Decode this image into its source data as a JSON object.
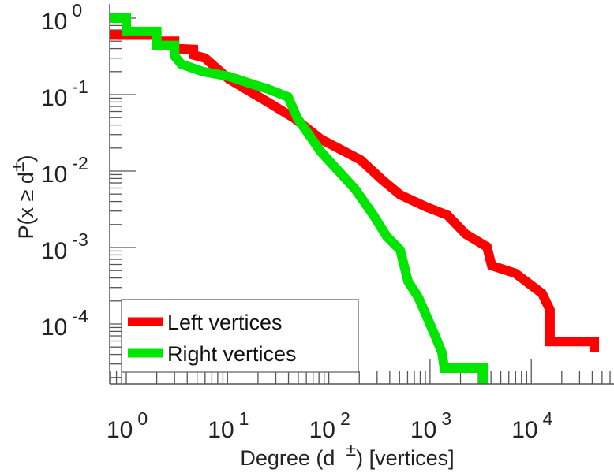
{
  "chart_data": {
    "type": "line",
    "title": "",
    "xlabel": {
      "main": "Degree (d",
      "sup": "±",
      "tail": ") [vertices]"
    },
    "ylabel": {
      "main": "P(x ≥ d",
      "sup": "±",
      "tail": ")"
    },
    "xscale": "log",
    "yscale": "log",
    "xlim": [
      0.69,
      60000
    ],
    "ylim": [
      1.65e-05,
      1.55
    ],
    "grid": false,
    "legend_position": "bottom-left",
    "x_ticks": [
      {
        "value": 1,
        "base": "10",
        "exp": "0"
      },
      {
        "value": 10,
        "base": "10",
        "exp": "1"
      },
      {
        "value": 100,
        "base": "10",
        "exp": "2"
      },
      {
        "value": 1000,
        "base": "10",
        "exp": "3"
      },
      {
        "value": 10000,
        "base": "10",
        "exp": "4"
      }
    ],
    "y_ticks": [
      {
        "value": 1,
        "base": "10",
        "exp": "0"
      },
      {
        "value": 0.1,
        "base": "10",
        "exp": "-1"
      },
      {
        "value": 0.01,
        "base": "10",
        "exp": "-2"
      },
      {
        "value": 0.001,
        "base": "10",
        "exp": "-3"
      },
      {
        "value": 0.0001,
        "base": "10",
        "exp": "-4"
      }
    ],
    "series": [
      {
        "name": "Left vertices",
        "color": "#ff0000",
        "points": [
          [
            0.69,
            0.6
          ],
          [
            2,
            0.6
          ],
          [
            2,
            0.5
          ],
          [
            3,
            0.5
          ],
          [
            3,
            0.4
          ],
          [
            4.6,
            0.39
          ],
          [
            4.6,
            0.33
          ],
          [
            6,
            0.3
          ],
          [
            10.3,
            0.16
          ],
          [
            25.3,
            0.079
          ],
          [
            45.7,
            0.049
          ],
          [
            84,
            0.026
          ],
          [
            206,
            0.014
          ],
          [
            329,
            0.0079
          ],
          [
            507,
            0.0049
          ],
          [
            916,
            0.0034
          ],
          [
            1487,
            0.00265
          ],
          [
            2247,
            0.0015
          ],
          [
            3650,
            0.00102
          ],
          [
            4065,
            0.00058
          ],
          [
            6970,
            0.00046
          ],
          [
            9440,
            0.00034
          ],
          [
            12800,
            0.00025
          ],
          [
            15300,
            0.000153
          ],
          [
            15300,
            5.9e-05
          ],
          [
            41900,
            5.9e-05
          ],
          [
            41900,
            4.25e-05
          ]
        ]
      },
      {
        "name": "Right vertices",
        "color": "#00e600",
        "points": [
          [
            0.69,
            1
          ],
          [
            1,
            1
          ],
          [
            1,
            0.67
          ],
          [
            2,
            0.67
          ],
          [
            2,
            0.44
          ],
          [
            3,
            0.44
          ],
          [
            3,
            0.32
          ],
          [
            3.5,
            0.25
          ],
          [
            5.7,
            0.2
          ],
          [
            10.3,
            0.173
          ],
          [
            21,
            0.127
          ],
          [
            25.3,
            0.118
          ],
          [
            39.6,
            0.093
          ],
          [
            49,
            0.049
          ],
          [
            84,
            0.0177
          ],
          [
            182,
            0.0058
          ],
          [
            276,
            0.00265
          ],
          [
            373,
            0.0014
          ],
          [
            507,
            0.00093
          ],
          [
            607,
            0.00036
          ],
          [
            765,
            0.000224
          ],
          [
            916,
            0.00013
          ],
          [
            1156,
            6.4e-05
          ],
          [
            1312,
            4.25e-05
          ],
          [
            1384,
            2.65e-05
          ],
          [
            3335,
            2.65e-05
          ],
          [
            3335,
            1.65e-05
          ]
        ]
      }
    ]
  }
}
